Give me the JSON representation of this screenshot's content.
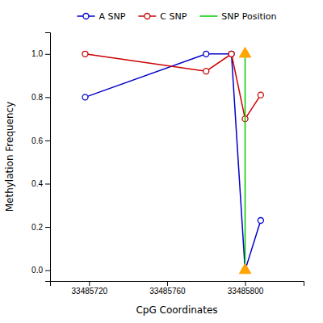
{
  "chart_data": {
    "type": "line",
    "xlabel": "CpG Coordinates",
    "ylabel": "Methylation Frequency",
    "xlim": [
      33485700,
      33485830
    ],
    "ylim": [
      -0.05,
      1.1
    ],
    "xticks": [
      33485720,
      33485760,
      33485800
    ],
    "yticks": [
      {
        "value": 0.0,
        "label": "0.0"
      },
      0.2,
      0.4,
      0.6,
      0.8,
      {
        "value": 1.0,
        "label": "1.0"
      }
    ],
    "grid": false,
    "legend": "top",
    "series": [
      {
        "name": "A SNP",
        "color": "#0000CC",
        "marker": "circle",
        "line_style": "solid",
        "x": [
          33485718,
          33485780,
          33485793,
          33485800,
          33485808
        ],
        "values": [
          0.8,
          1.0,
          1.0,
          0.0,
          0.23
        ]
      },
      {
        "name": "C SNP",
        "color": "#CC0000",
        "marker": "circle",
        "line_style": "solid",
        "x": [
          33485718,
          33485780,
          33485793,
          33485800,
          33485808
        ],
        "values": [
          1.0,
          0.92,
          1.0,
          0.7,
          0.81
        ]
      },
      {
        "name": "SNP Position",
        "color": "#00CC00",
        "marker": "none",
        "line_style": "solid",
        "x": [
          33485800,
          33485800
        ],
        "values": [
          0.0,
          1.0
        ]
      },
      {
        "color": "#FFA500",
        "marker": "triangle",
        "line_style": "none",
        "x": [
          33485800,
          33485800
        ],
        "values": [
          1.0,
          0.0
        ]
      }
    ]
  }
}
